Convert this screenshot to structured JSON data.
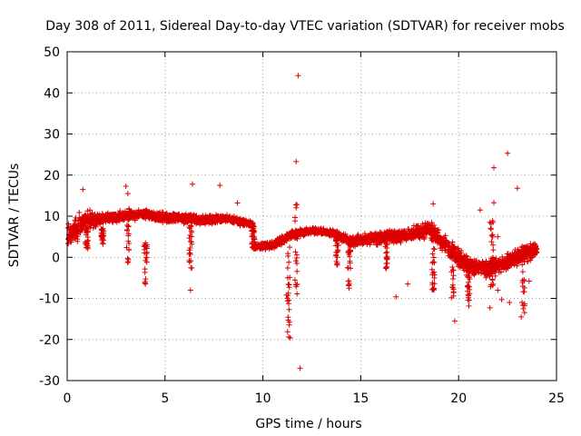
{
  "chart_data": {
    "type": "scatter",
    "title": "Day 308 of 2011, Sidereal Day-to-day VTEC variation (SDTVAR) for receiver mobs",
    "xlabel": "GPS time / hours",
    "ylabel": "SDTVAR / TECUs",
    "xlim": [
      0,
      25
    ],
    "ylim": [
      -30,
      50
    ],
    "grid": true,
    "marker": "+",
    "colors": {
      "series": "#dd0000",
      "grid": "#a0a0a0",
      "axis": "#000000"
    },
    "xticks": [
      {
        "value": 0,
        "label": "0"
      },
      {
        "value": 5,
        "label": "5"
      },
      {
        "value": 10,
        "label": "10"
      },
      {
        "value": 15,
        "label": "15"
      },
      {
        "value": 20,
        "label": "20"
      },
      {
        "value": 25,
        "label": "25"
      }
    ],
    "yticks": [
      {
        "value": -30,
        "label": "-30"
      },
      {
        "value": -20,
        "label": "-20"
      },
      {
        "value": -10,
        "label": "-10"
      },
      {
        "value": 0,
        "label": "0"
      },
      {
        "value": 10,
        "label": "10"
      },
      {
        "value": 20,
        "label": "20"
      },
      {
        "value": 30,
        "label": "30"
      },
      {
        "value": 40,
        "label": "40"
      },
      {
        "value": 50,
        "label": "50"
      }
    ],
    "trend": [
      {
        "x": 0.0,
        "y": 5,
        "spread": 3
      },
      {
        "x": 0.5,
        "y": 7,
        "spread": 4
      },
      {
        "x": 1.0,
        "y": 9,
        "spread": 3
      },
      {
        "x": 2.0,
        "y": 9.5,
        "spread": 1.5
      },
      {
        "x": 3.0,
        "y": 10,
        "spread": 1.5
      },
      {
        "x": 4.0,
        "y": 10.5,
        "spread": 1.5
      },
      {
        "x": 5.0,
        "y": 9.5,
        "spread": 1.5
      },
      {
        "x": 6.0,
        "y": 9.5,
        "spread": 1.5
      },
      {
        "x": 7.0,
        "y": 9,
        "spread": 1.5
      },
      {
        "x": 8.0,
        "y": 9.5,
        "spread": 1.2
      },
      {
        "x": 9.0,
        "y": 8.5,
        "spread": 1.2
      },
      {
        "x": 9.5,
        "y": 8,
        "spread": 1.0
      },
      {
        "x": 9.6,
        "y": 2.5,
        "spread": 1.0
      },
      {
        "x": 10.5,
        "y": 3,
        "spread": 1.2
      },
      {
        "x": 11.5,
        "y": 5.5,
        "spread": 1.5
      },
      {
        "x": 12.5,
        "y": 6.5,
        "spread": 1.0
      },
      {
        "x": 13.5,
        "y": 6,
        "spread": 1.0
      },
      {
        "x": 14.5,
        "y": 4,
        "spread": 1.5
      },
      {
        "x": 15.5,
        "y": 4.5,
        "spread": 2
      },
      {
        "x": 16.5,
        "y": 5,
        "spread": 2
      },
      {
        "x": 17.5,
        "y": 5.5,
        "spread": 2
      },
      {
        "x": 18.5,
        "y": 7,
        "spread": 2.5
      },
      {
        "x": 19.5,
        "y": 2,
        "spread": 3
      },
      {
        "x": 20.5,
        "y": -2,
        "spread": 3
      },
      {
        "x": 21.5,
        "y": -3,
        "spread": 2.5
      },
      {
        "x": 22.5,
        "y": -1,
        "spread": 2.5
      },
      {
        "x": 23.5,
        "y": 1,
        "spread": 3
      },
      {
        "x": 24.0,
        "y": 2,
        "spread": 2
      }
    ],
    "dips": [
      {
        "x": 1.0,
        "min": 2,
        "max": 8
      },
      {
        "x": 1.8,
        "min": 2,
        "max": 7
      },
      {
        "x": 3.1,
        "min": -2,
        "max": 12
      },
      {
        "x": 4.0,
        "min": -6.5,
        "max": 4
      },
      {
        "x": 6.3,
        "min": -3,
        "max": 8
      },
      {
        "x": 9.5,
        "min": 2,
        "max": 8
      },
      {
        "x": 11.3,
        "min": -20,
        "max": 3
      },
      {
        "x": 11.7,
        "min": -9,
        "max": 13
      },
      {
        "x": 13.8,
        "min": -2,
        "max": 6
      },
      {
        "x": 14.4,
        "min": -7,
        "max": 4
      },
      {
        "x": 16.3,
        "min": -3,
        "max": 5
      },
      {
        "x": 18.7,
        "min": -8,
        "max": 3
      },
      {
        "x": 19.7,
        "min": -10,
        "max": 3
      },
      {
        "x": 20.5,
        "min": -12,
        "max": 0
      },
      {
        "x": 21.7,
        "min": -12,
        "max": 10
      },
      {
        "x": 23.3,
        "min": -14,
        "max": 3
      }
    ],
    "outliers": [
      {
        "x": 11.8,
        "y": 44.2
      },
      {
        "x": 11.7,
        "y": 23.3
      },
      {
        "x": 11.9,
        "y": -27
      },
      {
        "x": 11.3,
        "y": -15.3
      },
      {
        "x": 11.4,
        "y": -19.6
      },
      {
        "x": 22.5,
        "y": 25.3
      },
      {
        "x": 21.8,
        "y": 21.8
      },
      {
        "x": 23.0,
        "y": 16.8
      },
      {
        "x": 21.8,
        "y": 13.3
      },
      {
        "x": 21.6,
        "y": 8.5
      },
      {
        "x": 21.1,
        "y": 11.5
      },
      {
        "x": 22.0,
        "y": 5
      },
      {
        "x": 3.0,
        "y": 17.3
      },
      {
        "x": 3.1,
        "y": 15.5
      },
      {
        "x": 0.8,
        "y": 16.5
      },
      {
        "x": 6.4,
        "y": 17.8
      },
      {
        "x": 7.8,
        "y": 17.5
      },
      {
        "x": 8.7,
        "y": 13.2
      },
      {
        "x": 18.7,
        "y": 13.0
      },
      {
        "x": 6.3,
        "y": -8
      },
      {
        "x": 4.0,
        "y": -6.5
      },
      {
        "x": 16.8,
        "y": -9.6
      },
      {
        "x": 17.4,
        "y": -6.5
      },
      {
        "x": 19.8,
        "y": -15.5
      },
      {
        "x": 23.2,
        "y": -14.5
      },
      {
        "x": 23.3,
        "y": -12.5
      },
      {
        "x": 22.6,
        "y": -11
      },
      {
        "x": 22.2,
        "y": -10.3
      },
      {
        "x": 21.6,
        "y": -12.3
      },
      {
        "x": 22.0,
        "y": -8
      },
      {
        "x": 23.6,
        "y": -5.8
      },
      {
        "x": 14.4,
        "y": -7.5
      },
      {
        "x": 11.2,
        "y": -9.2
      }
    ],
    "scatter_samples_per_hour": 160,
    "scatter_seed": 308
  }
}
